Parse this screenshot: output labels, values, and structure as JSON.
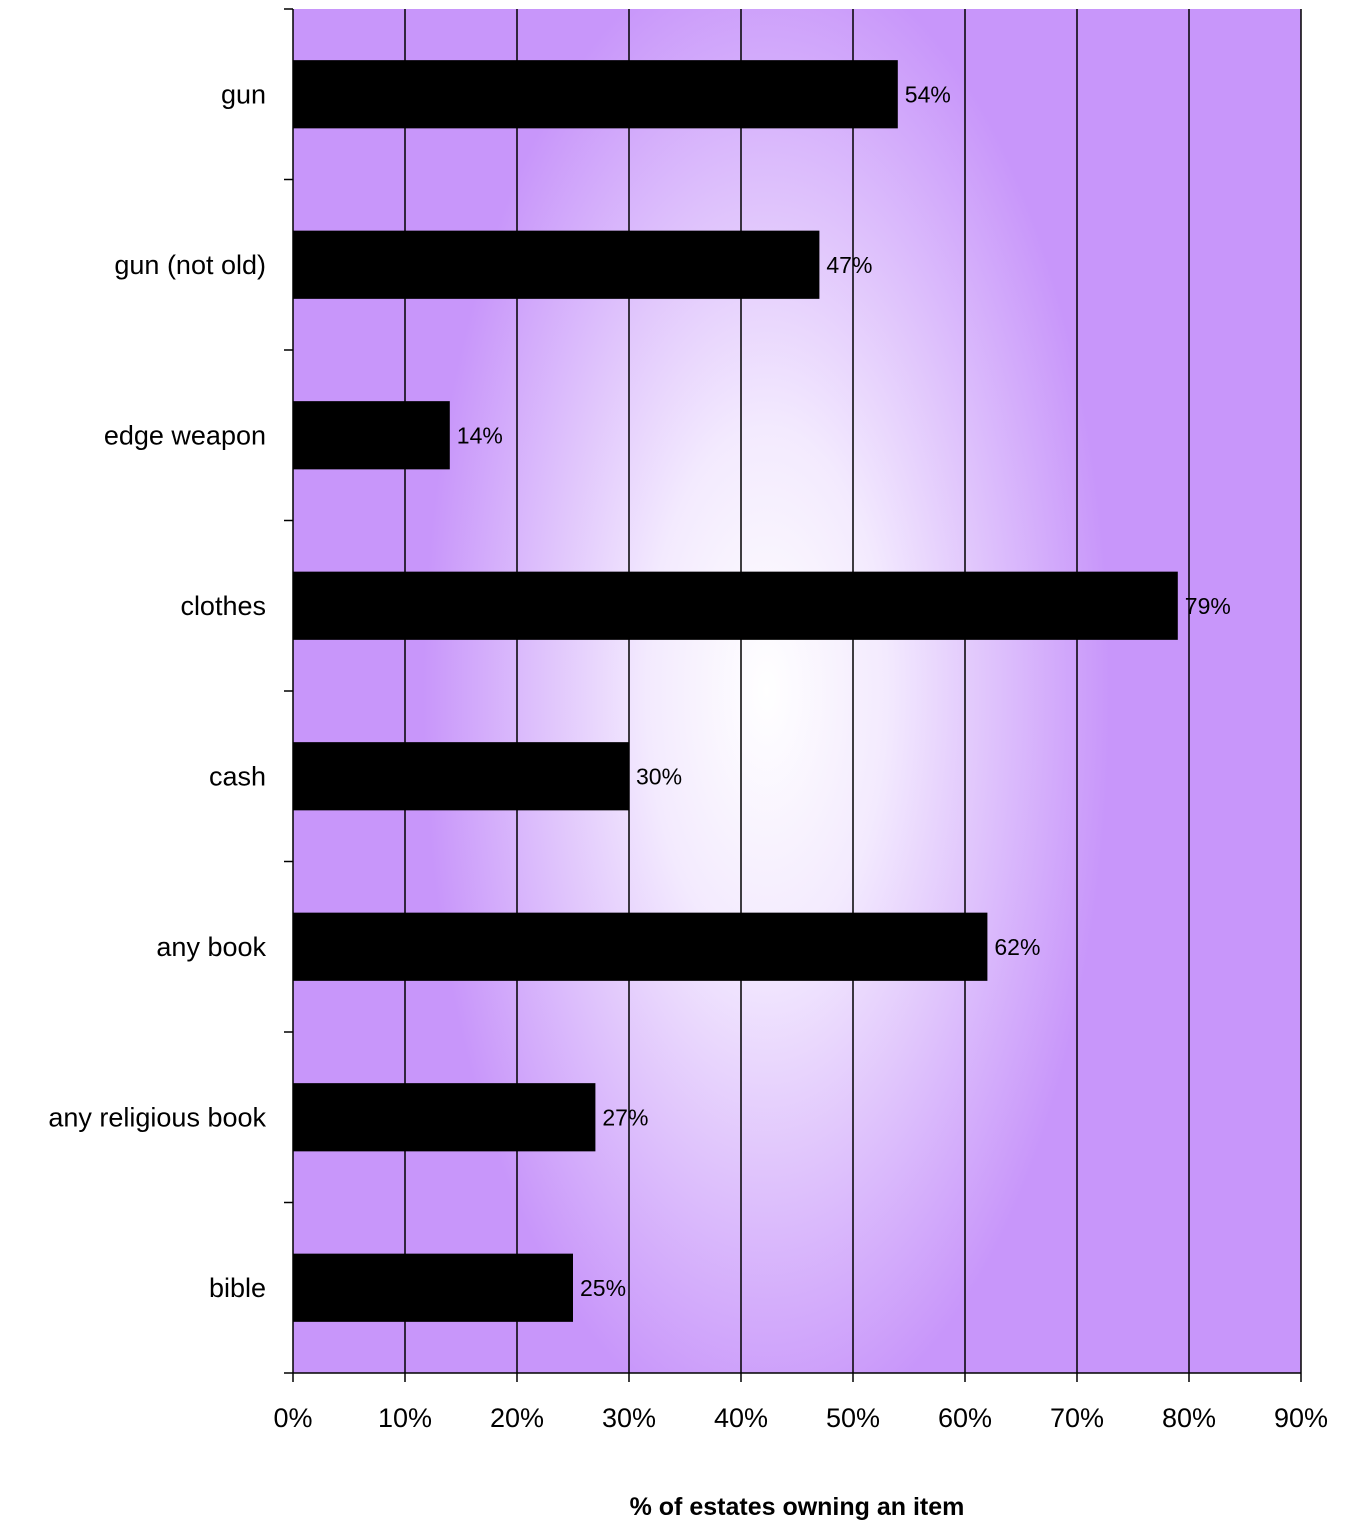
{
  "chart_data": {
    "type": "bar",
    "orientation": "horizontal",
    "categories": [
      "gun",
      "gun (not old)",
      "edge weapon",
      "clothes",
      "cash",
      "any book",
      "any religious book",
      "bible"
    ],
    "values": [
      54,
      47,
      14,
      79,
      30,
      62,
      27,
      25
    ],
    "data_labels": [
      "54%",
      "47%",
      "14%",
      "79%",
      "30%",
      "62%",
      "27%",
      "25%"
    ],
    "title": "",
    "xlabel": "% of estates owning an item",
    "ylabel": "",
    "xlim": [
      0,
      90
    ],
    "x_ticks": [
      "0%",
      "10%",
      "20%",
      "30%",
      "40%",
      "50%",
      "60%",
      "70%",
      "80%",
      "90%"
    ],
    "grid": "vertical",
    "legend": "none",
    "colors": {
      "bar": "#000000",
      "plot_edge": "#c896fa",
      "plot_center": "#ffffff",
      "gridline": "#000000"
    }
  }
}
